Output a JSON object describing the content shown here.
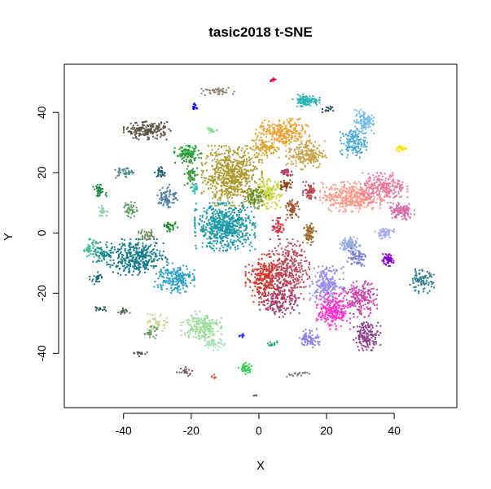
{
  "chart_data": {
    "type": "scatter",
    "title": "tasic2018 t-SNE",
    "xlabel": "X",
    "ylabel": "Y",
    "xlim": [
      -57.5,
      58.5
    ],
    "ylim": [
      -58,
      56
    ],
    "x_ticks": [
      -40,
      -20,
      0,
      20,
      40
    ],
    "y_ticks": [
      -40,
      -20,
      0,
      20,
      40
    ],
    "grid": false,
    "legend": "none",
    "clusters": [
      {
        "color": "#ab9a2e",
        "cx": -8,
        "cy": 19,
        "rx": 9,
        "ry": 10,
        "n": 650
      },
      {
        "color": "#c9d33c",
        "cx": 3,
        "cy": 13,
        "rx": 4,
        "ry": 5,
        "n": 140
      },
      {
        "color": "#6b8e23",
        "cx": -1,
        "cy": 12,
        "rx": 4,
        "ry": 4,
        "n": 90
      },
      {
        "color": "#1e9aa7",
        "cx": -10,
        "cy": 2,
        "rx": 9,
        "ry": 8,
        "n": 650
      },
      {
        "color": "#137a8a",
        "cx": -36,
        "cy": -8,
        "rx": 9,
        "ry": 6,
        "n": 380
      },
      {
        "color": "#2a9fc4",
        "cx": -25,
        "cy": -15,
        "rx": 6,
        "ry": 5,
        "n": 200
      },
      {
        "color": "#1a8c8c",
        "cx": -46,
        "cy": -7,
        "rx": 3,
        "ry": 4,
        "n": 70
      },
      {
        "color": "#3cbf8c",
        "cx": -50,
        "cy": -5,
        "rx": 2,
        "ry": 3,
        "n": 45
      },
      {
        "color": "#d2392b",
        "cx": 2,
        "cy": -15,
        "rx": 6,
        "ry": 8,
        "n": 300
      },
      {
        "color": "#b84a5a",
        "cx": 9,
        "cy": -12,
        "rx": 6,
        "ry": 10,
        "n": 300
      },
      {
        "color": "#a23c6a",
        "cx": 6,
        "cy": -22,
        "rx": 6,
        "ry": 6,
        "n": 180
      },
      {
        "color": "#f0a030",
        "cx": 7,
        "cy": 33,
        "rx": 8,
        "ry": 5,
        "n": 280
      },
      {
        "color": "#c8a24a",
        "cx": 14,
        "cy": 26,
        "rx": 6,
        "ry": 5,
        "n": 200
      },
      {
        "color": "#d9a52e",
        "cx": 2,
        "cy": 28,
        "rx": 4,
        "ry": 3,
        "n": 90
      },
      {
        "color": "#2bb5b5",
        "cx": 14,
        "cy": 44,
        "rx": 4,
        "ry": 2,
        "n": 110
      },
      {
        "color": "#4aa8d8",
        "cx": 28,
        "cy": 30,
        "rx": 4,
        "ry": 5,
        "n": 150
      },
      {
        "color": "#6fb9e8",
        "cx": 31,
        "cy": 37,
        "rx": 3,
        "ry": 4,
        "n": 100
      },
      {
        "color": "#ff9a8a",
        "cx": 27,
        "cy": 12,
        "rx": 9,
        "ry": 5,
        "n": 400
      },
      {
        "color": "#e87a9a",
        "cx": 37,
        "cy": 15,
        "rx": 7,
        "ry": 5,
        "n": 250
      },
      {
        "color": "#d86aa8",
        "cx": 42,
        "cy": 7,
        "rx": 4,
        "ry": 3,
        "n": 120
      },
      {
        "color": "#9988ee",
        "cx": 20,
        "cy": -17,
        "rx": 5,
        "ry": 6,
        "n": 220
      },
      {
        "color": "#ff33cc",
        "cx": 22,
        "cy": -26,
        "rx": 5,
        "ry": 6,
        "n": 250
      },
      {
        "color": "#cc44aa",
        "cx": 30,
        "cy": -22,
        "rx": 5,
        "ry": 6,
        "n": 200
      },
      {
        "color": "#8b3a8b",
        "cx": 32,
        "cy": -34,
        "rx": 4,
        "ry": 5,
        "n": 150
      },
      {
        "color": "#8a7fe0",
        "cx": 15,
        "cy": -35,
        "rx": 3,
        "ry": 3,
        "n": 80
      },
      {
        "color": "#8fa8e0",
        "cx": 27,
        "cy": -4,
        "rx": 3,
        "ry": 3,
        "n": 90
      },
      {
        "color": "#7a7acc",
        "cx": 29,
        "cy": -8,
        "rx": 3,
        "ry": 3,
        "n": 60
      },
      {
        "color": "#aaaaee",
        "cx": 37,
        "cy": 0,
        "rx": 3,
        "ry": 2,
        "n": 60
      },
      {
        "color": "#8800cc",
        "cx": 38,
        "cy": -9,
        "rx": 2,
        "ry": 2,
        "n": 60
      },
      {
        "color": "#2e7a8a",
        "cx": 48,
        "cy": -16,
        "rx": 4,
        "ry": 4,
        "n": 90
      },
      {
        "color": "#a0522d",
        "cx": 10,
        "cy": 8,
        "rx": 2,
        "ry": 3,
        "n": 60
      },
      {
        "color": "#9c6a2a",
        "cx": 15,
        "cy": 0,
        "rx": 2,
        "ry": 4,
        "n": 70
      },
      {
        "color": "#b8434c",
        "cx": 15,
        "cy": 14,
        "rx": 2,
        "ry": 3,
        "n": 60
      },
      {
        "color": "#8b4513",
        "cx": 8,
        "cy": 16,
        "rx": 2,
        "ry": 2,
        "n": 40
      },
      {
        "color": "#cc3344",
        "cx": 6,
        "cy": 2,
        "rx": 2,
        "ry": 3,
        "n": 50
      },
      {
        "color": "#b03a5a",
        "cx": 8,
        "cy": 20,
        "rx": 2,
        "ry": 1.5,
        "n": 30
      },
      {
        "color": "#5c5345",
        "cx": -33,
        "cy": 34,
        "rx": 7,
        "ry": 3,
        "n": 190
      },
      {
        "color": "#22a033",
        "cx": -21,
        "cy": 26,
        "rx": 4,
        "ry": 3,
        "n": 110
      },
      {
        "color": "#3c9c3c",
        "cx": -20,
        "cy": 19,
        "rx": 2,
        "ry": 4,
        "n": 60
      },
      {
        "color": "#4a8a8a",
        "cx": -40,
        "cy": 20,
        "rx": 3,
        "ry": 2,
        "n": 40
      },
      {
        "color": "#1f8844",
        "cx": -47,
        "cy": 14,
        "rx": 2,
        "ry": 2,
        "n": 40
      },
      {
        "color": "#90d8a0",
        "cx": -46,
        "cy": 7,
        "rx": 2,
        "ry": 2,
        "n": 30
      },
      {
        "color": "#5a9a5a",
        "cx": -38,
        "cy": 8,
        "rx": 2,
        "ry": 3,
        "n": 40
      },
      {
        "color": "#4a7ca0",
        "cx": -27,
        "cy": 12,
        "rx": 3,
        "ry": 4,
        "n": 80
      },
      {
        "color": "#1a5a6a",
        "cx": -29,
        "cy": 20,
        "rx": 2,
        "ry": 2,
        "n": 30
      },
      {
        "color": "#118822",
        "cx": -26,
        "cy": 2,
        "rx": 2,
        "ry": 1.5,
        "n": 30
      },
      {
        "color": "#6a8a5a",
        "cx": -33,
        "cy": -1,
        "rx": 3,
        "ry": 2,
        "n": 40
      },
      {
        "color": "#ffe000",
        "cx": 42,
        "cy": 28,
        "rx": 2,
        "ry": 1,
        "n": 30
      },
      {
        "color": "#0000ee",
        "cx": -19,
        "cy": 42,
        "rx": 1,
        "ry": 1,
        "n": 15
      },
      {
        "color": "#dd0055",
        "cx": 4,
        "cy": 51,
        "rx": 1,
        "ry": 1,
        "n": 10
      },
      {
        "color": "#8a7a70",
        "cx": -12,
        "cy": 47,
        "rx": 5,
        "ry": 1.5,
        "n": 40
      },
      {
        "color": "#1e4a5a",
        "cx": 20,
        "cy": 41,
        "rx": 2,
        "ry": 1,
        "n": 15
      },
      {
        "color": "#2ec0b0",
        "cx": -19,
        "cy": 15,
        "rx": 1.5,
        "ry": 2,
        "n": 20
      },
      {
        "color": "#7ad888",
        "cx": -14,
        "cy": 34,
        "rx": 2,
        "ry": 1,
        "n": 15
      },
      {
        "color": "#99dd99",
        "cx": -17,
        "cy": -31,
        "rx": 6,
        "ry": 5,
        "n": 200
      },
      {
        "color": "#a6e6b6",
        "cx": -13,
        "cy": -37,
        "rx": 3,
        "ry": 2,
        "n": 50
      },
      {
        "color": "#c8d890",
        "cx": -30,
        "cy": -30,
        "rx": 3,
        "ry": 3,
        "n": 50
      },
      {
        "color": "#6a9a6a",
        "cx": -32,
        "cy": -33,
        "rx": 2,
        "ry": 2,
        "n": 30
      },
      {
        "color": "#556655",
        "cx": -40,
        "cy": -26,
        "rx": 2,
        "ry": 1,
        "n": 20
      },
      {
        "color": "#2e5a5a",
        "cx": -47,
        "cy": -25,
        "rx": 2,
        "ry": 1,
        "n": 15
      },
      {
        "color": "#1b6d6d",
        "cx": -48,
        "cy": -15,
        "rx": 2,
        "ry": 2,
        "n": 25
      },
      {
        "color": "#555555",
        "cx": -35,
        "cy": -40,
        "rx": 2,
        "ry": 1,
        "n": 15
      },
      {
        "color": "#22aa77",
        "cx": 4,
        "cy": -37,
        "rx": 2,
        "ry": 1,
        "n": 15
      },
      {
        "color": "#33cc55",
        "cx": -4,
        "cy": -45,
        "rx": 2,
        "ry": 2,
        "n": 40
      },
      {
        "color": "#7a5a5a",
        "cx": -22,
        "cy": -46,
        "rx": 3,
        "ry": 1.5,
        "n": 20
      },
      {
        "color": "#cc6655",
        "cx": -13,
        "cy": -48,
        "rx": 1,
        "ry": 1,
        "n": 8
      },
      {
        "color": "#3333ff",
        "cx": -5,
        "cy": -34,
        "rx": 1,
        "ry": 1,
        "n": 10
      },
      {
        "color": "#777777",
        "cx": 11,
        "cy": -47,
        "rx": 4,
        "ry": 1,
        "n": 20
      },
      {
        "color": "#556666",
        "cx": -1,
        "cy": -54,
        "rx": 1,
        "ry": 0.3,
        "n": 5
      }
    ]
  }
}
